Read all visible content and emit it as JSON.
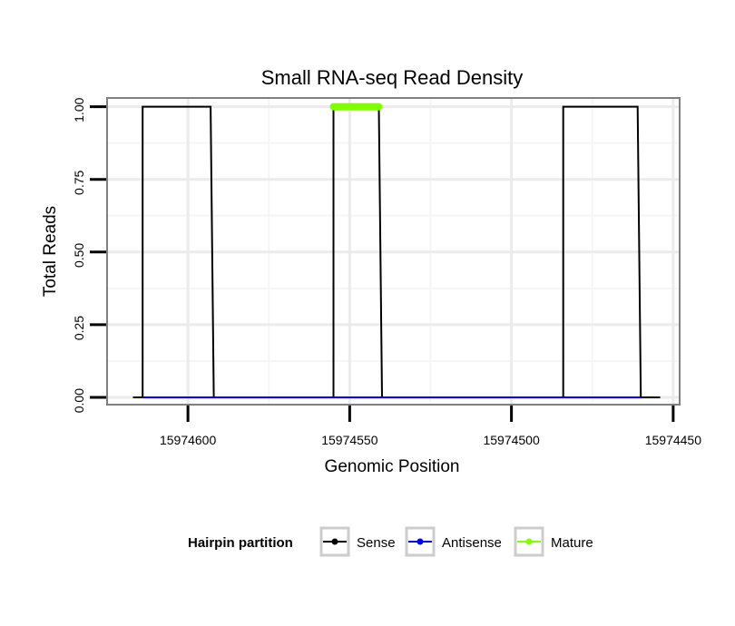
{
  "chart_data": {
    "type": "line",
    "title": "Small RNA-seq Read Density",
    "xlabel": "Genomic Position",
    "ylabel": "Total Reads",
    "xlim": [
      15974625,
      15974448
    ],
    "x_reversed": true,
    "ylim": [
      -0.025,
      1.03
    ],
    "xticks": [
      15974600,
      15974550,
      15974500,
      15974450
    ],
    "xtick_labels": [
      "15974600",
      "15974550",
      "15974500",
      "15974450"
    ],
    "yticks": [
      0,
      0.25,
      0.5,
      0.75,
      1.0
    ],
    "ytick_labels": [
      "0.00",
      "0.25",
      "0.50",
      "0.75",
      "1.00"
    ],
    "legend": {
      "title": "Hairpin partition",
      "position": "bottom",
      "entries": [
        {
          "label": "Sense",
          "color": "#000000"
        },
        {
          "label": "Antisense",
          "color": "#0000ff"
        },
        {
          "label": "Mature",
          "color": "#7fff00"
        }
      ]
    },
    "series": [
      {
        "name": "Sense",
        "color": "#000000",
        "x": [
          15974617,
          15974614,
          15974614,
          15974593,
          15974592,
          15974592,
          15974556,
          15974555,
          15974555,
          15974541,
          15974540,
          15974540,
          15974485,
          15974484,
          15974484,
          15974461,
          15974460,
          15974460,
          15974454
        ],
        "y": [
          0,
          0,
          1,
          1,
          0,
          0,
          0,
          0,
          1,
          1,
          0,
          0,
          0,
          0,
          1,
          1,
          0,
          0,
          0
        ]
      },
      {
        "name": "Antisense",
        "color": "#0000ff",
        "x": [
          15974614,
          15974592,
          15974592,
          15974555,
          15974555,
          15974540,
          15974540,
          15974484,
          15974484,
          15974460
        ],
        "y": [
          0,
          0,
          0,
          0,
          0,
          0,
          0,
          0,
          0,
          0
        ]
      },
      {
        "name": "Mature",
        "color": "#7fff00",
        "x": [
          15974555,
          15974541
        ],
        "y": [
          1,
          1
        ]
      }
    ]
  }
}
